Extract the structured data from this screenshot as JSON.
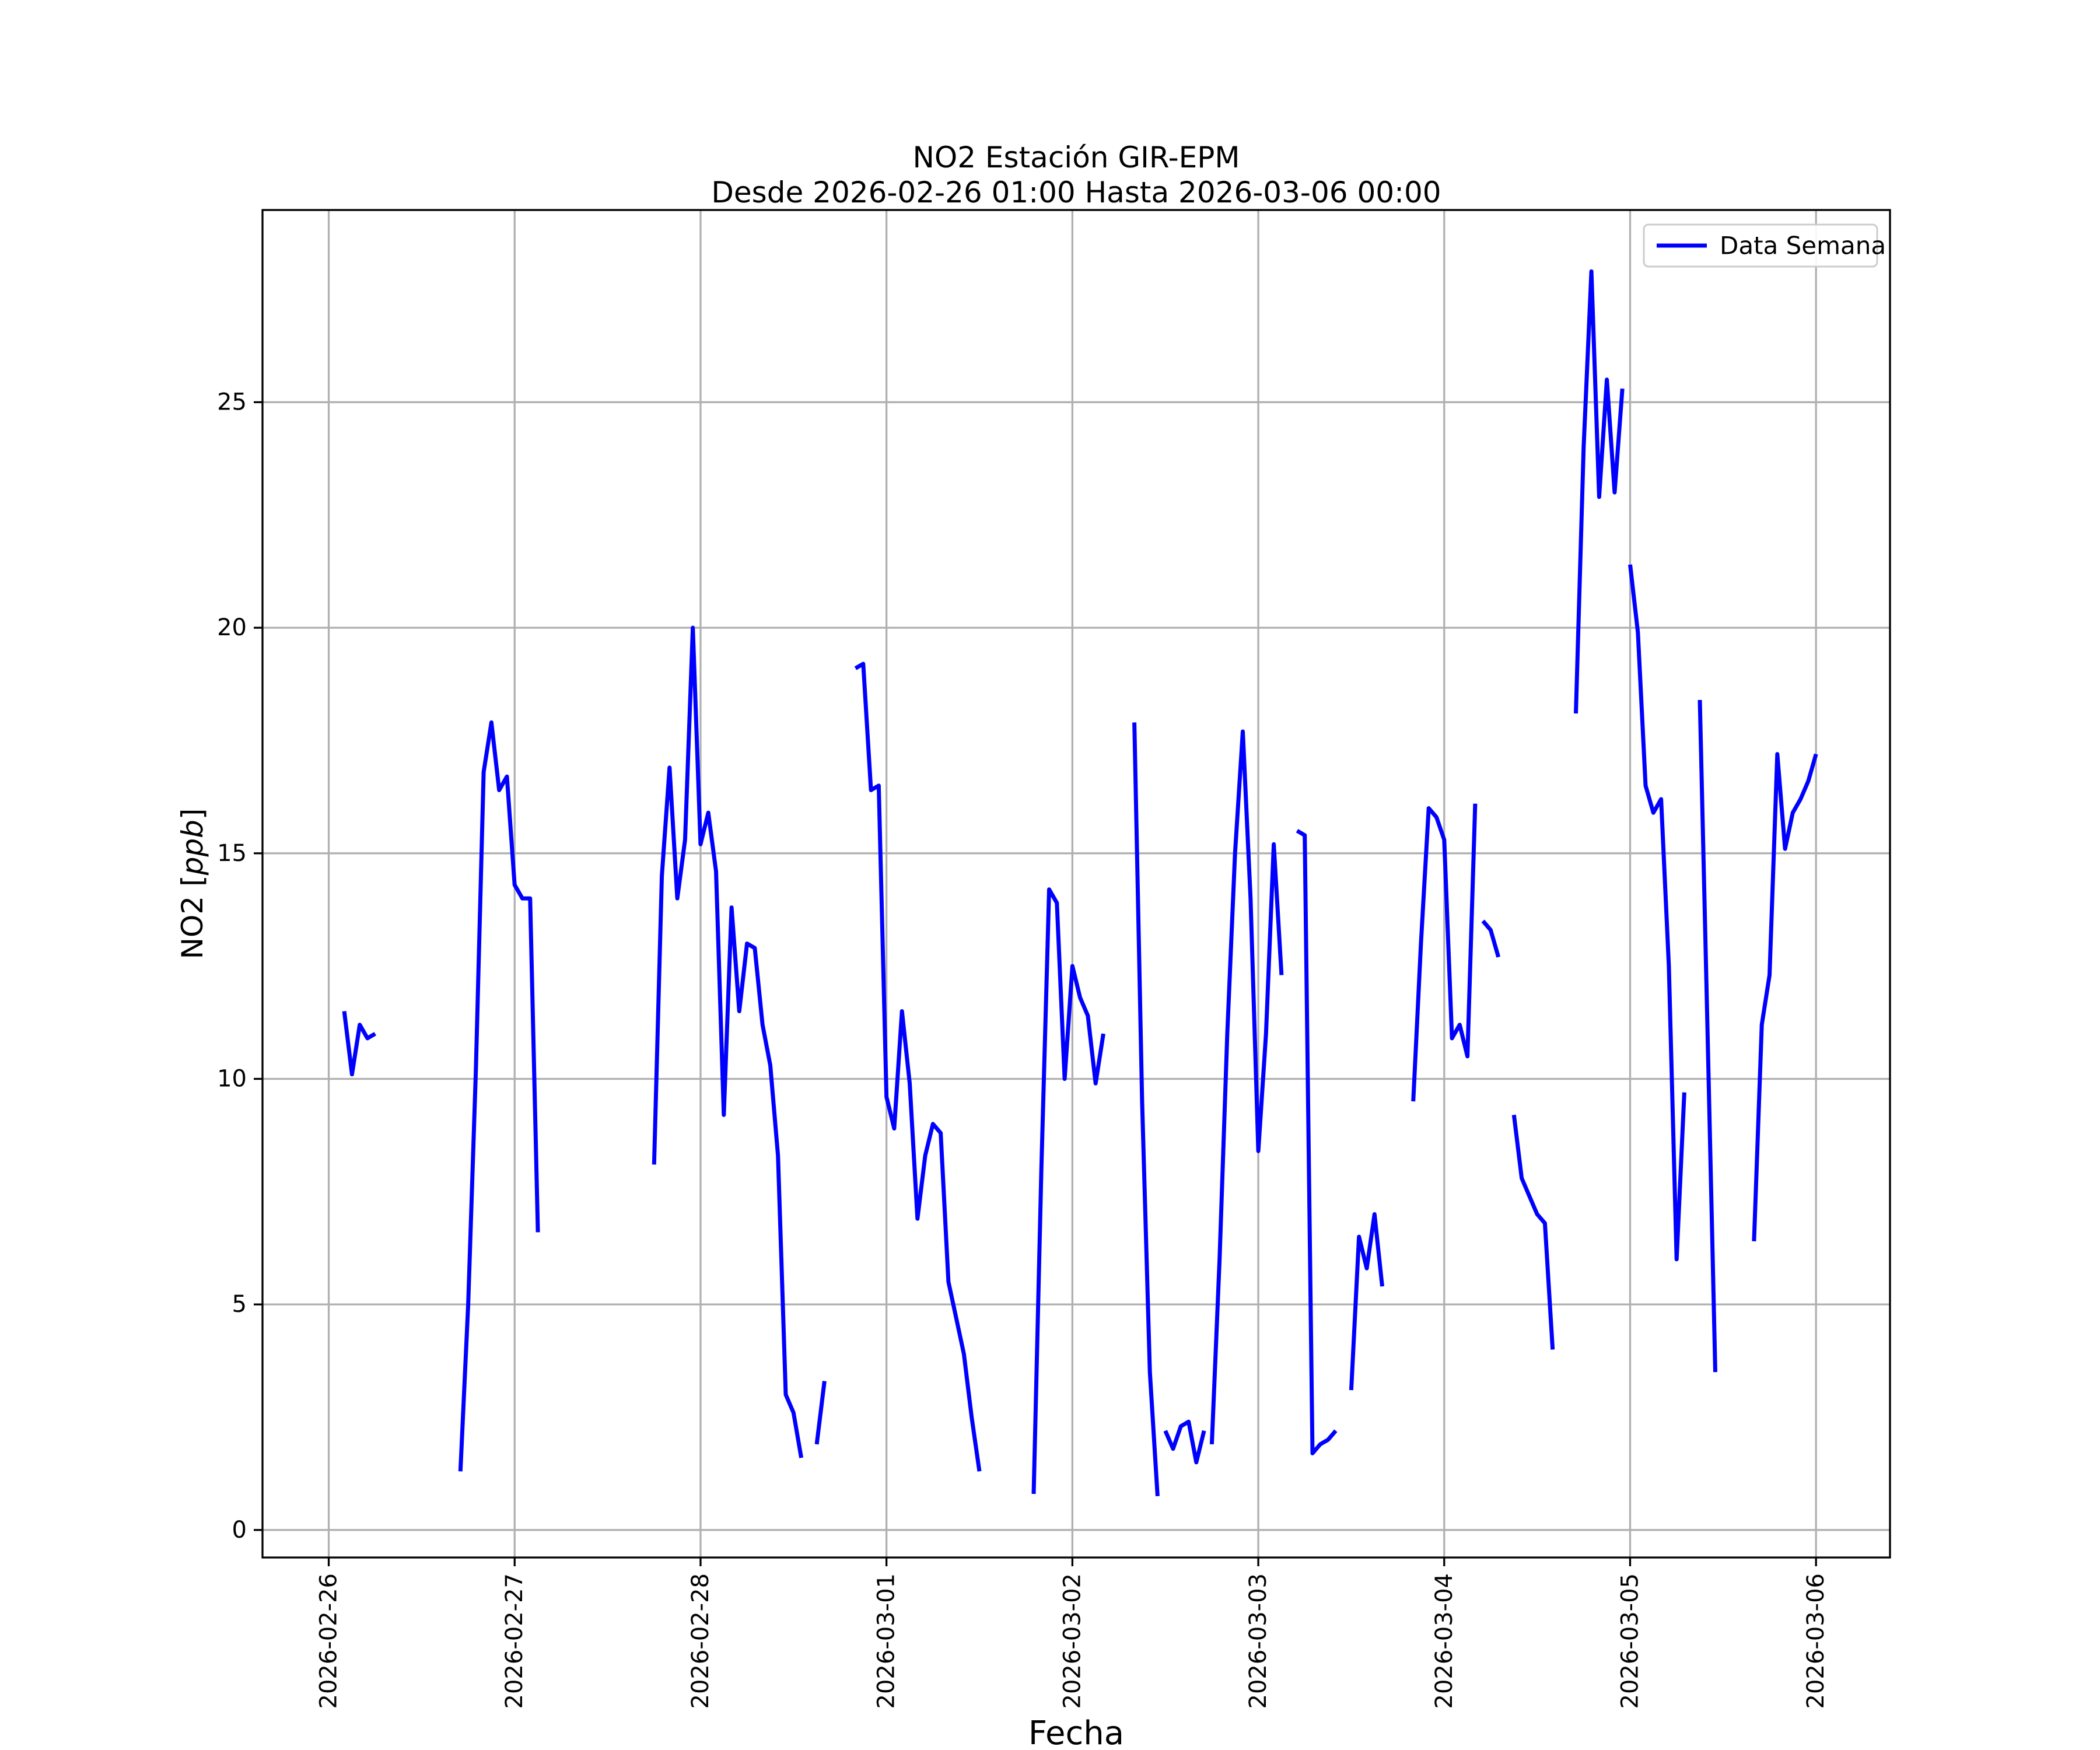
{
  "chart_data": {
    "type": "line",
    "title_lines": [
      "NO2 Estación GIR-EPM",
      "Desde 2026-02-26 01:00 Hasta 2026-03-06 00:00"
    ],
    "xlabel": "Fecha",
    "ylabel": "NO2 [ppb]",
    "legend": {
      "label": "Data Semana",
      "position": "upper right"
    },
    "line_color": "#0000ff",
    "grid": true,
    "grid_color": "#b0b0b0",
    "spine_color": "#000000",
    "x_base": "2026-02-26 00:00",
    "xlim_hours": [
      -8.55,
      201.55
    ],
    "ylim": [
      -0.61,
      29.26
    ],
    "yticks": [
      0,
      5,
      10,
      15,
      20,
      25
    ],
    "xticks": [
      {
        "hour": 0,
        "label": "2026-02-26"
      },
      {
        "hour": 24,
        "label": "2026-02-27"
      },
      {
        "hour": 48,
        "label": "2026-02-28"
      },
      {
        "hour": 72,
        "label": "2026-03-01"
      },
      {
        "hour": 96,
        "label": "2026-03-02"
      },
      {
        "hour": 120,
        "label": "2026-03-03"
      },
      {
        "hour": 144,
        "label": "2026-03-04"
      },
      {
        "hour": 168,
        "label": "2026-03-05"
      },
      {
        "hour": 192,
        "label": "2026-03-06"
      }
    ],
    "segments": [
      [
        [
          "2026-02-26 02:00",
          11.5
        ],
        [
          "2026-02-26 03:00",
          10.1
        ],
        [
          "2026-02-26 04:00",
          11.2
        ],
        [
          "2026-02-26 05:00",
          10.9
        ],
        [
          "2026-02-26 06:00",
          11.0
        ]
      ],
      [
        [
          "2026-02-26 17:00",
          1.3
        ],
        [
          "2026-02-26 18:00",
          5.0
        ],
        [
          "2026-02-26 19:00",
          10.2
        ],
        [
          "2026-02-26 20:00",
          16.8
        ],
        [
          "2026-02-26 21:00",
          17.9
        ],
        [
          "2026-02-26 22:00",
          16.4
        ],
        [
          "2026-02-26 23:00",
          16.7
        ],
        [
          "2026-02-27 00:00",
          14.3
        ],
        [
          "2026-02-27 01:00",
          14.0
        ],
        [
          "2026-02-27 02:00",
          14.0
        ],
        [
          "2026-02-27 03:00",
          6.6
        ]
      ],
      [
        [
          "2026-02-27 18:00",
          8.1
        ],
        [
          "2026-02-27 19:00",
          14.5
        ],
        [
          "2026-02-27 20:00",
          16.9
        ],
        [
          "2026-02-27 21:00",
          14.0
        ],
        [
          "2026-02-27 22:00",
          15.3
        ],
        [
          "2026-02-27 23:00",
          20.0
        ],
        [
          "2026-02-28 00:00",
          15.2
        ],
        [
          "2026-02-28 01:00",
          15.9
        ],
        [
          "2026-02-28 02:00",
          14.6
        ],
        [
          "2026-02-28 03:00",
          9.2
        ],
        [
          "2026-02-28 04:00",
          13.8
        ],
        [
          "2026-02-28 05:00",
          11.5
        ],
        [
          "2026-02-28 06:00",
          13.0
        ],
        [
          "2026-02-28 07:00",
          12.9
        ],
        [
          "2026-02-28 08:00",
          11.2
        ],
        [
          "2026-02-28 09:00",
          10.3
        ],
        [
          "2026-02-28 10:00",
          8.3
        ],
        [
          "2026-02-28 11:00",
          3.0
        ],
        [
          "2026-02-28 12:00",
          2.6
        ],
        [
          "2026-02-28 13:00",
          1.6
        ]
      ],
      [
        [
          "2026-02-28 15:00",
          1.9
        ],
        [
          "2026-02-28 16:00",
          3.3
        ]
      ],
      [
        [
          "2026-02-28 20:00",
          19.1
        ],
        [
          "2026-02-28 21:00",
          19.2
        ],
        [
          "2026-02-28 22:00",
          16.4
        ],
        [
          "2026-02-28 23:00",
          16.5
        ],
        [
          "2026-03-01 00:00",
          9.6
        ],
        [
          "2026-03-01 01:00",
          8.9
        ],
        [
          "2026-03-01 02:00",
          11.5
        ],
        [
          "2026-03-01 03:00",
          9.9
        ],
        [
          "2026-03-01 04:00",
          6.9
        ],
        [
          "2026-03-01 05:00",
          8.3
        ],
        [
          "2026-03-01 06:00",
          9.0
        ],
        [
          "2026-03-01 07:00",
          8.8
        ],
        [
          "2026-03-01 08:00",
          5.5
        ],
        [
          "2026-03-01 09:00",
          4.7
        ],
        [
          "2026-03-01 10:00",
          3.9
        ],
        [
          "2026-03-01 11:00",
          2.5
        ],
        [
          "2026-03-01 12:00",
          1.3
        ]
      ],
      [
        [
          "2026-03-01 19:00",
          0.8
        ],
        [
          "2026-03-01 20:00",
          8.0
        ],
        [
          "2026-03-01 21:00",
          14.2
        ],
        [
          "2026-03-01 22:00",
          13.9
        ],
        [
          "2026-03-01 23:00",
          10.0
        ],
        [
          "2026-03-02 00:00",
          12.5
        ],
        [
          "2026-03-02 01:00",
          11.8
        ],
        [
          "2026-03-02 02:00",
          11.4
        ],
        [
          "2026-03-02 03:00",
          9.9
        ],
        [
          "2026-03-02 04:00",
          11.0
        ]
      ],
      [
        [
          "2026-03-02 08:00",
          17.9
        ],
        [
          "2026-03-02 09:00",
          9.5
        ],
        [
          "2026-03-02 10:00",
          3.5
        ],
        [
          "2026-03-02 11:00",
          0.75
        ]
      ],
      [
        [
          "2026-03-02 12:00",
          2.2
        ],
        [
          "2026-03-02 13:00",
          1.8
        ],
        [
          "2026-03-02 14:00",
          2.3
        ],
        [
          "2026-03-02 15:00",
          2.4
        ],
        [
          "2026-03-02 16:00",
          1.5
        ],
        [
          "2026-03-02 17:00",
          2.2
        ]
      ],
      [
        [
          "2026-03-02 18:00",
          1.9
        ],
        [
          "2026-03-02 19:00",
          6.0
        ],
        [
          "2026-03-02 20:00",
          11.0
        ],
        [
          "2026-03-02 21:00",
          15.0
        ],
        [
          "2026-03-02 22:00",
          17.7
        ],
        [
          "2026-03-02 23:00",
          14.0
        ],
        [
          "2026-03-03 00:00",
          8.4
        ],
        [
          "2026-03-03 01:00",
          11.0
        ],
        [
          "2026-03-03 02:00",
          15.2
        ],
        [
          "2026-03-03 03:00",
          12.3
        ]
      ],
      [
        [
          "2026-03-03 05:00",
          15.5
        ],
        [
          "2026-03-03 06:00",
          15.4
        ],
        [
          "2026-03-03 07:00",
          1.7
        ],
        [
          "2026-03-03 08:00",
          1.9
        ],
        [
          "2026-03-03 09:00",
          2.0
        ],
        [
          "2026-03-03 10:00",
          2.2
        ]
      ],
      [
        [
          "2026-03-03 12:00",
          3.1
        ],
        [
          "2026-03-03 13:00",
          6.5
        ],
        [
          "2026-03-03 14:00",
          5.8
        ],
        [
          "2026-03-03 15:00",
          7.0
        ],
        [
          "2026-03-03 16:00",
          5.4
        ]
      ],
      [
        [
          "2026-03-03 20:00",
          9.5
        ],
        [
          "2026-03-03 21:00",
          13.0
        ],
        [
          "2026-03-03 22:00",
          16.0
        ],
        [
          "2026-03-03 23:00",
          15.8
        ],
        [
          "2026-03-04 00:00",
          15.3
        ],
        [
          "2026-03-04 01:00",
          10.9
        ],
        [
          "2026-03-04 02:00",
          11.2
        ],
        [
          "2026-03-04 03:00",
          10.5
        ],
        [
          "2026-03-04 04:00",
          16.1
        ]
      ],
      [
        [
          "2026-03-04 05:00",
          13.5
        ],
        [
          "2026-03-04 06:00",
          13.3
        ],
        [
          "2026-03-04 07:00",
          12.7
        ]
      ],
      [
        [
          "2026-03-04 09:00",
          9.2
        ],
        [
          "2026-03-04 10:00",
          7.8
        ],
        [
          "2026-03-04 11:00",
          7.4
        ],
        [
          "2026-03-04 12:00",
          7.0
        ],
        [
          "2026-03-04 13:00",
          6.8
        ],
        [
          "2026-03-04 14:00",
          4.0
        ]
      ],
      [
        [
          "2026-03-04 17:00",
          18.1
        ],
        [
          "2026-03-04 18:00",
          24.0
        ],
        [
          "2026-03-04 19:00",
          27.9
        ],
        [
          "2026-03-04 20:00",
          22.9
        ],
        [
          "2026-03-04 21:00",
          25.5
        ],
        [
          "2026-03-04 22:00",
          23.0
        ],
        [
          "2026-03-04 23:00",
          25.3
        ]
      ],
      [
        [
          "2026-03-05 00:00",
          21.4
        ],
        [
          "2026-03-05 01:00",
          19.9
        ],
        [
          "2026-03-05 02:00",
          16.5
        ],
        [
          "2026-03-05 03:00",
          15.9
        ],
        [
          "2026-03-05 04:00",
          16.2
        ],
        [
          "2026-03-05 05:00",
          12.5
        ],
        [
          "2026-03-05 06:00",
          6.0
        ],
        [
          "2026-03-05 07:00",
          9.7
        ]
      ],
      [
        [
          "2026-03-05 09:00",
          18.4
        ],
        [
          "2026-03-05 10:00",
          11.0
        ],
        [
          "2026-03-05 11:00",
          3.5
        ]
      ],
      [
        [
          "2026-03-05 16:00",
          6.4
        ],
        [
          "2026-03-05 17:00",
          11.2
        ],
        [
          "2026-03-05 18:00",
          12.3
        ],
        [
          "2026-03-05 19:00",
          17.2
        ],
        [
          "2026-03-05 20:00",
          15.1
        ],
        [
          "2026-03-05 21:00",
          15.9
        ],
        [
          "2026-03-05 22:00",
          16.2
        ],
        [
          "2026-03-05 23:00",
          16.6
        ],
        [
          "2026-03-06 00:00",
          17.2
        ]
      ]
    ]
  }
}
